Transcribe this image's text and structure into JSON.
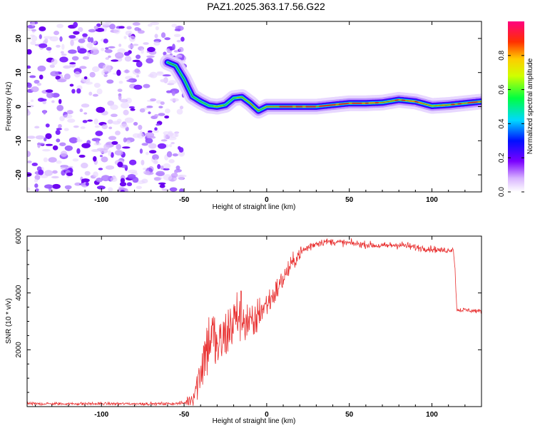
{
  "title": "PAZ1.2025.363.17.56.G22",
  "chart_data": [
    {
      "type": "heatmap",
      "xlabel": "Height of straight line (km)",
      "ylabel": "Frequency (Hz)",
      "xlim": [
        -145,
        130
      ],
      "ylim": [
        -25,
        25
      ],
      "xticks": [
        -100,
        -50,
        0,
        50,
        100
      ],
      "yticks": [
        -20,
        -10,
        0,
        10,
        20
      ],
      "colorbar": {
        "label": "Normalized spectral amplitude",
        "range": [
          0,
          1
        ],
        "ticks": [
          0.0,
          0.2,
          0.4,
          0.6,
          0.8
        ]
      },
      "noise_region_x": [
        -145,
        -50
      ],
      "ridge": {
        "x": [
          -60,
          -55,
          -50,
          -45,
          -40,
          -35,
          -30,
          -25,
          -20,
          -15,
          -10,
          -5,
          0,
          10,
          20,
          30,
          40,
          50,
          60,
          70,
          80,
          90,
          100,
          110,
          120,
          130
        ],
        "freq": [
          13,
          12,
          8,
          3,
          1.5,
          0.3,
          0,
          0.5,
          2.5,
          2.8,
          1,
          -1.2,
          0,
          0,
          0,
          0,
          0.5,
          1,
          1,
          1.2,
          2,
          1.5,
          0.2,
          0.5,
          1,
          1.5
        ],
        "amplitude": [
          0.35,
          0.45,
          0.5,
          0.55,
          0.6,
          0.65,
          0.8,
          0.6,
          0.7,
          0.75,
          0.8,
          0.7,
          0.75,
          0.95,
          0.95,
          0.9,
          0.95,
          0.95,
          0.95,
          0.85,
          0.9,
          0.9,
          0.85,
          0.85,
          0.9,
          0.95
        ]
      }
    },
    {
      "type": "line",
      "xlabel": "Height of straight line (km)",
      "ylabel": "SNR (10 * v/v)",
      "xlim": [
        -145,
        130
      ],
      "ylim": [
        0,
        6000
      ],
      "xticks": [
        -100,
        -50,
        0,
        50,
        100
      ],
      "yticks": [
        2000,
        4000,
        6000
      ],
      "color": "#e83030",
      "series": [
        {
          "name": "SNR",
          "x": [
            -145,
            -60,
            -50,
            -45,
            -42,
            -38,
            -33,
            -30,
            -25,
            -20,
            -16,
            -12,
            -8,
            -5,
            0,
            5,
            10,
            15,
            20,
            25,
            30,
            35,
            40,
            50,
            60,
            70,
            80,
            90,
            100,
            105,
            110,
            113,
            114,
            115,
            116,
            120,
            130
          ],
          "y": [
            100,
            100,
            120,
            300,
            800,
            1800,
            2600,
            2000,
            2500,
            3000,
            3300,
            3000,
            2800,
            3300,
            3600,
            4000,
            4500,
            5000,
            5400,
            5600,
            5750,
            5800,
            5800,
            5750,
            5700,
            5650,
            5700,
            5600,
            5550,
            5500,
            5500,
            5550,
            4800,
            3450,
            3400,
            3400,
            3350
          ],
          "noise": [
            50,
            50,
            60,
            300,
            600,
            1200,
            1200,
            1000,
            1000,
            1100,
            1000,
            900,
            700,
            600,
            500,
            450,
            400,
            300,
            250,
            200,
            150,
            120,
            120,
            120,
            120,
            120,
            150,
            120,
            120,
            100,
            100,
            100,
            100,
            80,
            80,
            80,
            80
          ]
        }
      ]
    }
  ]
}
